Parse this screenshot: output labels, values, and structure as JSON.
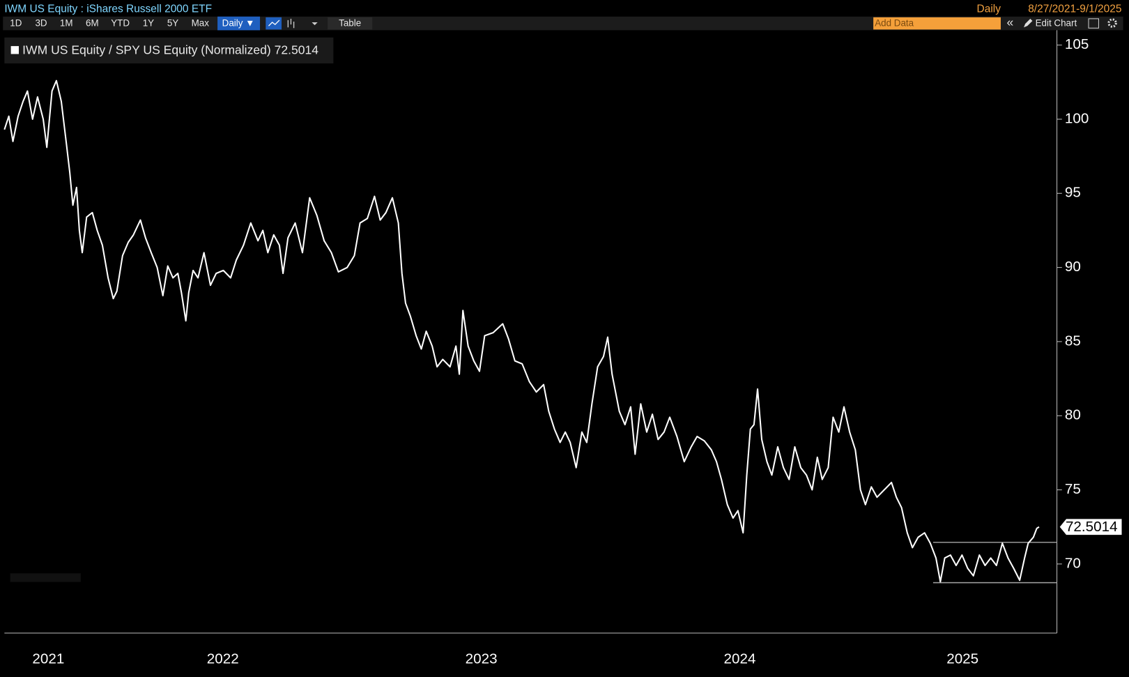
{
  "toolbar": {
    "title": "IWM US Equity : iShares Russell 2000 ETF",
    "frequency": "Daily",
    "date_range": "8/27/2021-9/1/2025",
    "periods": [
      "1D",
      "3D",
      "1M",
      "6M",
      "YTD",
      "1Y",
      "5Y",
      "Max"
    ],
    "frequency_button": "Daily ▼",
    "table_button": "Table",
    "add_data": "Add Data",
    "collapse": "«",
    "edit_chart": "Edit Chart"
  },
  "chart_data": {
    "type": "line",
    "series": [
      {
        "name": "IWM US Equity / SPY US Equity (Normalized)",
        "color": "#ffffff",
        "values": [
          99.3,
          100.2,
          98.5,
          100.2,
          101.2,
          101.9,
          100.0,
          101.5,
          100.0,
          98.1,
          101.9,
          102.6,
          101.2,
          98.3,
          96.4,
          94.2,
          95.4,
          92.5,
          91.0,
          93.4,
          93.7,
          92.5,
          91.5,
          89.3,
          87.9,
          88.4,
          90.8,
          91.7,
          92.2,
          93.2,
          92.0,
          91.0,
          90.0,
          88.1,
          90.1,
          89.3,
          89.6,
          88.3,
          86.4,
          88.3,
          89.8,
          89.3,
          91.0,
          88.8,
          89.6,
          89.8,
          89.3,
          90.5,
          91.5,
          93.0,
          91.8,
          92.5,
          91.0,
          92.2,
          91.5,
          89.6,
          92.0,
          93.0,
          91.0,
          94.7,
          93.5,
          91.8,
          91.0,
          89.7,
          90.0,
          90.8,
          93.0,
          93.3,
          94.8,
          93.2,
          93.7,
          94.7,
          93.0,
          89.6,
          87.6,
          86.7,
          85.4,
          84.5,
          85.7,
          84.7,
          83.3,
          83.8,
          83.3,
          84.7,
          82.8,
          87.1,
          84.7,
          83.7,
          83.0,
          85.4,
          85.6,
          86.2,
          85.2,
          83.7,
          83.5,
          82.3,
          81.6,
          82.1,
          80.3,
          79.1,
          78.2,
          78.9,
          78.2,
          76.5,
          78.9,
          78.2,
          80.8,
          83.3,
          84.0,
          85.3,
          82.8,
          80.3,
          79.4,
          80.6,
          77.4,
          80.8,
          78.9,
          80.1,
          78.4,
          78.9,
          79.9,
          78.6,
          76.9,
          77.9,
          78.6,
          78.3,
          77.7,
          76.9,
          75.7,
          74.0,
          73.1,
          73.6,
          72.1,
          76.0,
          79.1,
          79.4,
          81.8,
          78.4,
          76.9,
          76.0,
          77.9,
          76.5,
          75.7,
          77.9,
          76.5,
          76.0,
          75.0,
          77.2,
          75.7,
          76.5,
          79.9,
          78.9,
          80.6,
          78.9,
          77.7,
          75.0,
          74.0,
          75.2,
          74.5,
          75.0,
          75.5,
          74.5,
          73.8,
          72.1,
          71.1,
          71.8,
          72.1,
          71.4,
          70.4,
          68.8,
          70.4,
          70.6,
          69.9,
          70.6,
          69.7,
          69.2,
          70.6,
          69.9,
          70.4,
          69.9,
          71.4,
          70.4,
          69.7,
          68.9,
          70.4,
          71.4,
          71.8,
          72.4,
          72.5014
        ]
      }
    ],
    "x": [
      2021.655,
      2021.672,
      2021.688,
      2021.708,
      2021.727,
      2021.744,
      2021.764,
      2021.783,
      2021.805,
      2021.819,
      2021.839,
      2021.856,
      2021.875,
      2021.895,
      2021.908,
      2021.92,
      2021.934,
      2021.945,
      2021.956,
      2021.973,
      2021.995,
      2022.014,
      2022.034,
      2022.056,
      2022.076,
      2022.09,
      2022.112,
      2022.134,
      2022.154,
      2022.181,
      2022.201,
      2022.223,
      2022.246,
      2022.268,
      2022.287,
      2022.307,
      2022.326,
      2022.34,
      2022.357,
      2022.368,
      2022.385,
      2022.404,
      2022.427,
      2022.452,
      2022.474,
      2022.502,
      2022.53,
      2022.552,
      2022.58,
      2022.608,
      2022.636,
      2022.655,
      2022.674,
      2022.697,
      2022.719,
      2022.733,
      2022.752,
      2022.78,
      2022.808,
      2022.836,
      2022.864,
      2022.892,
      2022.92,
      2022.947,
      2022.981,
      2023.009,
      2023.031,
      2023.059,
      2023.087,
      2023.109,
      2023.131,
      2023.156,
      2023.179,
      2023.193,
      2023.207,
      2023.226,
      2023.248,
      2023.268,
      2023.287,
      2023.31,
      2023.329,
      2023.351,
      2023.379,
      2023.402,
      2023.415,
      2023.429,
      2023.449,
      2023.471,
      2023.493,
      2023.513,
      2023.546,
      2023.583,
      2023.605,
      2023.63,
      2023.658,
      2023.686,
      2023.713,
      2023.741,
      2023.761,
      2023.783,
      2023.805,
      2023.825,
      2023.844,
      2023.867,
      2023.889,
      2023.908,
      2023.928,
      2023.95,
      2023.973,
      2023.989,
      2024.006,
      2024.034,
      2024.056,
      2024.078,
      2024.095,
      2024.117,
      2024.14,
      2024.162,
      2024.184,
      2024.207,
      2024.229,
      2024.257,
      2024.285,
      2024.312,
      2024.335,
      2024.363,
      2024.39,
      2024.41,
      2024.429,
      2024.452,
      2024.474,
      2024.493,
      2024.513,
      2024.527,
      2024.541,
      2024.555,
      2024.569,
      2024.585,
      2024.605,
      2024.624,
      2024.647,
      2024.669,
      2024.691,
      2024.713,
      2024.736,
      2024.758,
      2024.78,
      2024.8,
      2024.819,
      2024.842,
      2024.861,
      2024.883,
      2024.903,
      2024.925,
      2024.947,
      2024.967,
      2024.986,
      2025.009,
      2025.031,
      2025.059,
      2025.087,
      2025.106,
      2025.126,
      2025.148,
      2025.168,
      2025.19,
      2025.215,
      2025.237,
      2025.259,
      2025.276,
      2025.293,
      2025.315,
      2025.337,
      2025.36,
      2025.382,
      2025.404,
      2025.427,
      2025.449,
      2025.471,
      2025.493,
      2025.516,
      2025.538,
      2025.56,
      2025.583,
      2025.602,
      2025.616,
      2025.636,
      2025.649,
      2025.658
    ],
    "last_value": 72.5014,
    "xlim": [
      2021.655,
      2025.727
    ],
    "xticks": [
      {
        "value": 2021.825,
        "label": "2021"
      },
      {
        "value": 2022.5,
        "label": "2022"
      },
      {
        "value": 2023.5,
        "label": "2023"
      },
      {
        "value": 2024.5,
        "label": "2024"
      },
      {
        "value": 2025.362,
        "label": "2025"
      }
    ],
    "ylim": [
      65.34,
      106
    ],
    "yticks": [
      70,
      75,
      80,
      85,
      90,
      95,
      100,
      105
    ],
    "range_box": {
      "x": [
        2025.248,
        2025.727
      ],
      "y": [
        68.74,
        71.46
      ]
    },
    "grid": false
  }
}
